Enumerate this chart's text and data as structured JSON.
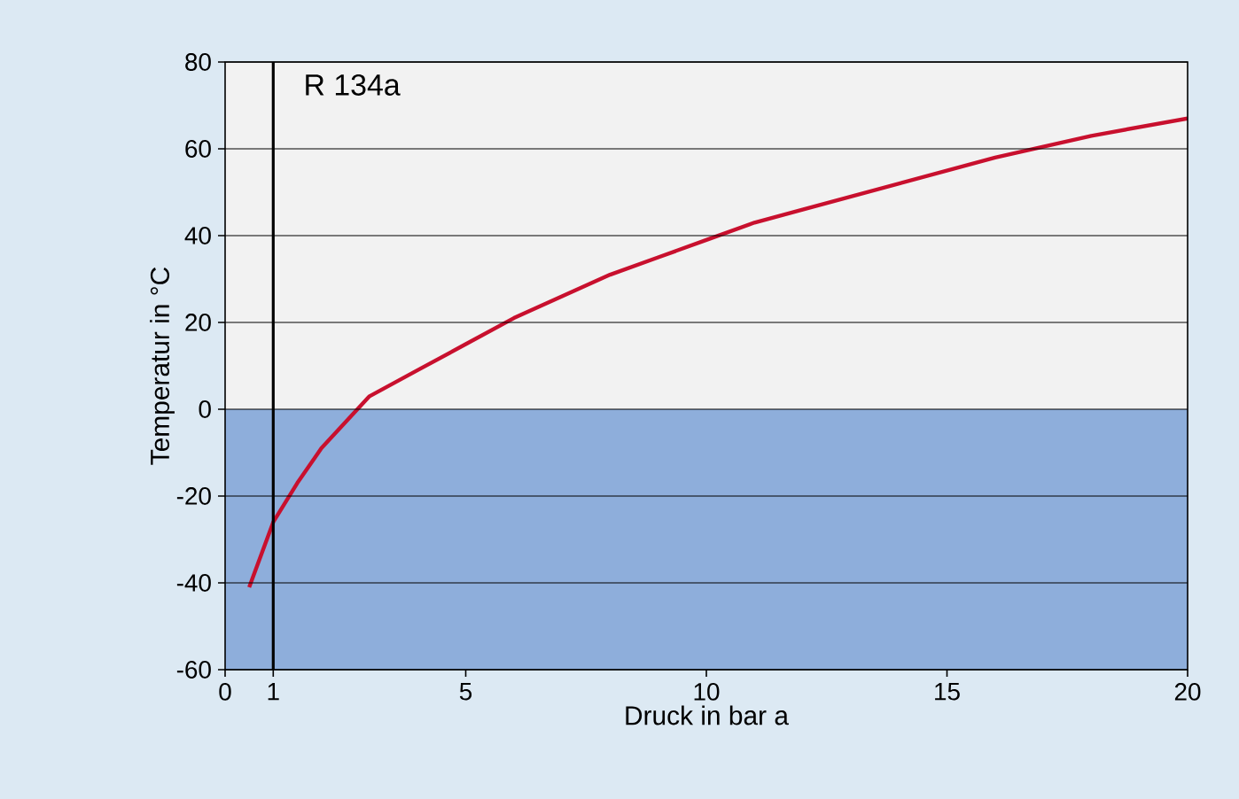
{
  "chart_data": {
    "type": "line",
    "xlabel": "Druck in bar a",
    "ylabel": "Temperatur in °C",
    "annotations": [
      "R 134a"
    ],
    "x": [
      0.5,
      1,
      1.5,
      2,
      3,
      4,
      5,
      6,
      7,
      8,
      9,
      10,
      11,
      12,
      14,
      16,
      18,
      20
    ],
    "series": [
      {
        "color": "#c8102e",
        "values": [
          -41,
          -26,
          -17,
          -9,
          3,
          9,
          15,
          21,
          26,
          31,
          35,
          39,
          43,
          46,
          52,
          58,
          63,
          67
        ]
      }
    ],
    "xlim": [
      0,
      20
    ],
    "ylim": [
      -60,
      80
    ],
    "xticks": [
      0,
      1,
      5,
      10,
      15,
      20
    ],
    "yticks": [
      -60,
      -40,
      -20,
      0,
      20,
      40,
      60,
      80
    ],
    "grid": "y",
    "marker": "none",
    "line_style": "solid",
    "bands": [
      {
        "axis": "y",
        "from": -60,
        "to": 0,
        "color": "#8eaedb"
      },
      {
        "axis": "y",
        "from": 0,
        "to": 80,
        "color": "#f2f2f2"
      }
    ],
    "ref_lines": [
      {
        "axis": "x",
        "value": 1,
        "color": "#000000"
      }
    ]
  }
}
